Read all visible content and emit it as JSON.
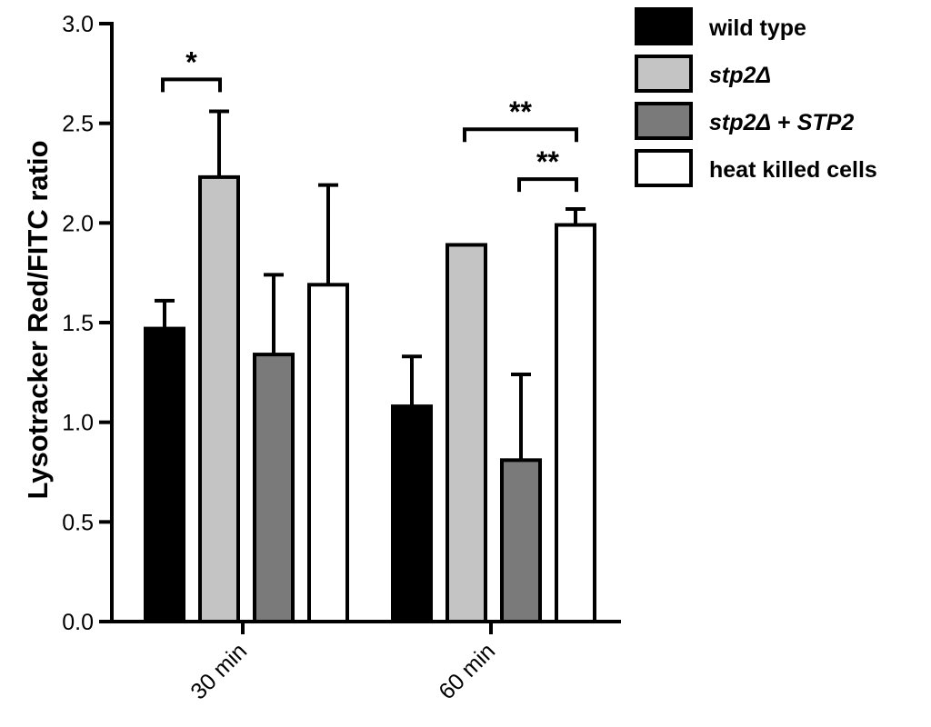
{
  "chart_data": {
    "type": "bar",
    "categories": [
      "30 min",
      "60 min"
    ],
    "ylabel": "Lysotracker Red/FITC ratio",
    "xlabel": "",
    "ylim": [
      0,
      3.0
    ],
    "yticks": [
      "0.0",
      "0.5",
      "1.0",
      "1.5",
      "2.0",
      "2.5",
      "3.0"
    ],
    "grid": false,
    "legend_position": "top-right",
    "series": [
      {
        "name_parts": [
          {
            "text": "wild type",
            "italic": false
          }
        ],
        "fill": "#000000",
        "values": [
          1.47,
          1.08
        ],
        "errors": [
          0.14,
          0.25
        ]
      },
      {
        "name_parts": [
          {
            "text": "stp2Δ",
            "italic": true
          }
        ],
        "fill": "#c4c4c4",
        "values": [
          2.23,
          1.89
        ],
        "errors": [
          0.33,
          0.0
        ]
      },
      {
        "name_parts": [
          {
            "text": "stp2Δ",
            "italic": true
          },
          {
            "text": " + ",
            "italic": false
          },
          {
            "text": "STP2",
            "italic": true
          }
        ],
        "fill": "#7a7a7a",
        "values": [
          1.34,
          0.81
        ],
        "errors": [
          0.4,
          0.43
        ]
      },
      {
        "name_parts": [
          {
            "text": "heat killed cells",
            "italic": false
          }
        ],
        "fill": "#ffffff",
        "values": [
          1.69,
          1.99
        ],
        "errors": [
          0.5,
          0.08
        ]
      }
    ],
    "significance": [
      {
        "group": 0,
        "from_series": 0,
        "to_series": 1,
        "y": 2.72,
        "label": "*"
      },
      {
        "group": 1,
        "from_series": 1,
        "to_series": 3,
        "y": 2.47,
        "label": "**"
      },
      {
        "group": 1,
        "from_series": 2,
        "to_series": 3,
        "y": 2.22,
        "label": "**"
      }
    ]
  }
}
